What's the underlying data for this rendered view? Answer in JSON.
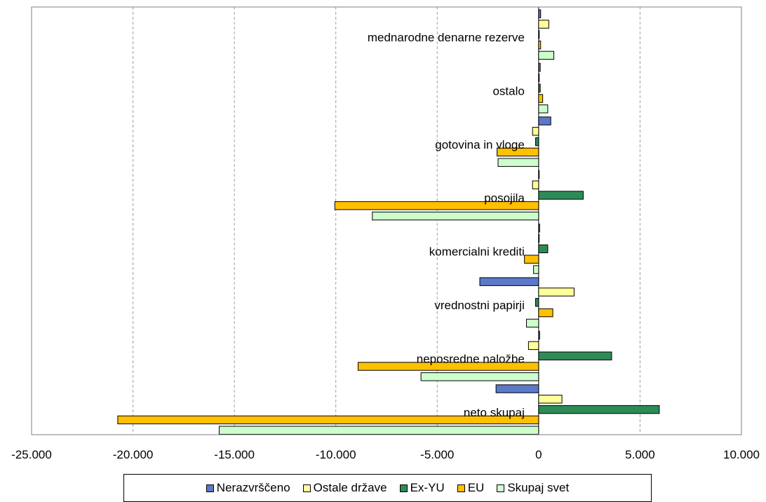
{
  "chart_data": {
    "type": "bar",
    "orientation": "horizontal",
    "categories": [
      "mednarodne denarne rezerve",
      "ostalo",
      "gotovina in vloge",
      "posojila",
      "komercialni krediti",
      "vrednostni papirji",
      "neposredne naložbe",
      "neto skupaj"
    ],
    "series": [
      {
        "name": "Nerazvrščeno",
        "color": "#5b79c8",
        "values": [
          100,
          80,
          600,
          0,
          50,
          -2900,
          50,
          -2100
        ]
      },
      {
        "name": "Ostale države",
        "color": "#ffff99",
        "values": [
          500,
          30,
          -300,
          -300,
          0,
          1750,
          -500,
          1150
        ]
      },
      {
        "name": "Ex-YU",
        "color": "#2e8b57",
        "values": [
          30,
          80,
          -150,
          2200,
          450,
          -150,
          3600,
          5950
        ]
      },
      {
        "name": "EU",
        "color": "#ffc000",
        "values": [
          100,
          200,
          -2050,
          -10050,
          -700,
          700,
          -8900,
          -20750
        ]
      },
      {
        "name": "Skupaj svet",
        "color": "#ccffcc",
        "values": [
          750,
          450,
          -2000,
          -8200,
          -250,
          -600,
          -5800,
          -15750
        ]
      }
    ],
    "xlim": [
      -25000,
      10000
    ],
    "xticks": [
      "-25.000",
      "-20.000",
      "-15.000",
      "-10.000",
      "-5.000",
      "0",
      "5.000",
      "10.000"
    ],
    "xtick_values": [
      -25000,
      -20000,
      -15000,
      -10000,
      -5000,
      0,
      5000,
      10000
    ],
    "grid": "vertical-dashed",
    "legend_position": "bottom",
    "title": "",
    "xlabel": "",
    "ylabel": ""
  }
}
